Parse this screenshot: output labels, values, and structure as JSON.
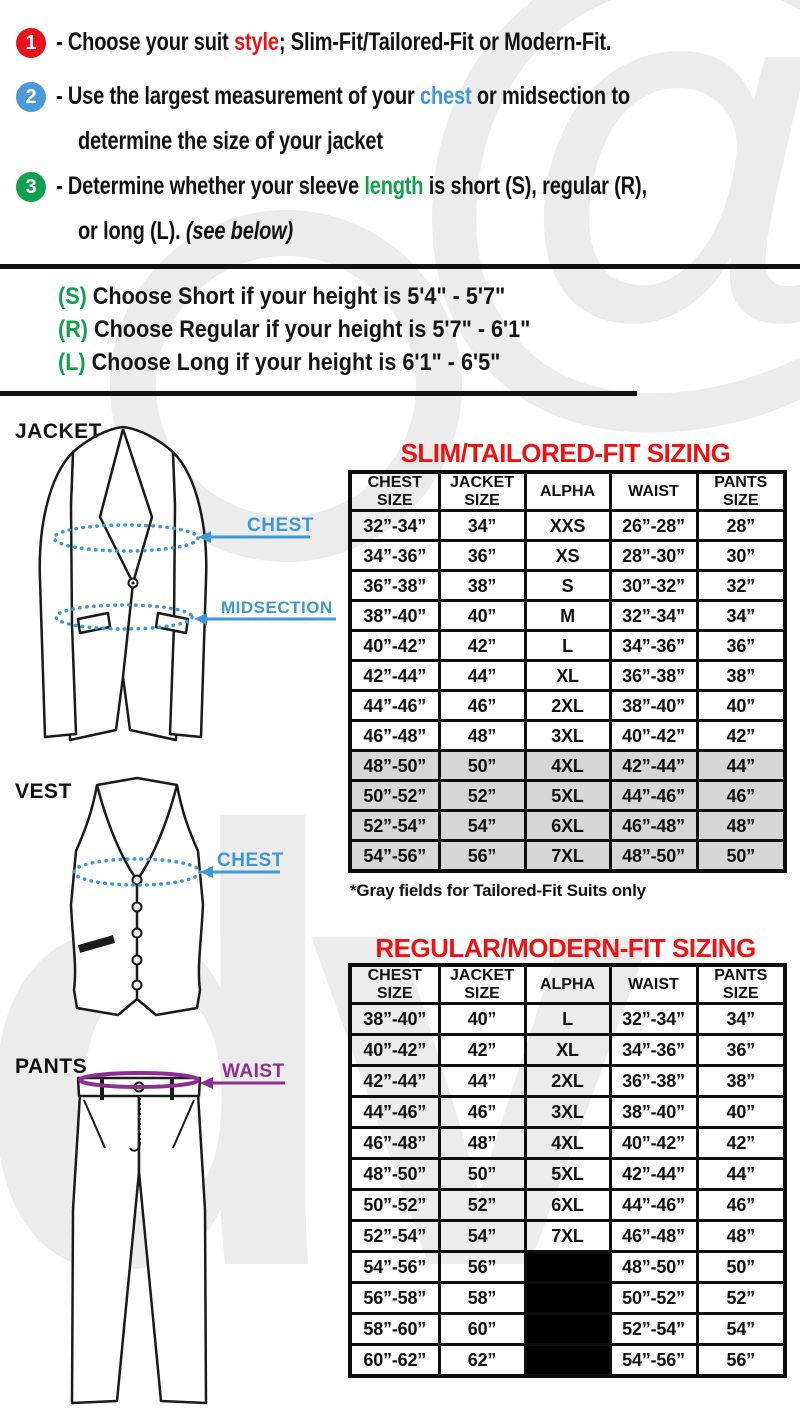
{
  "colors": {
    "accent_red": "#ee1212",
    "accent_blue": "#3f98d6",
    "accent_purple": "#8d2e93",
    "accent_green": "#13a04d",
    "badge_red": "#e8121c",
    "badge_blue": "#4a9ad9",
    "badge_green": "#13a04d",
    "gray_row": "#d6d6d6",
    "black_cell": "#000000"
  },
  "instructions": {
    "badges": [
      {
        "label": "1",
        "color": "red"
      },
      {
        "label": "2",
        "color": "blue"
      },
      {
        "label": "3",
        "color": "green"
      }
    ],
    "line1": [
      {
        "t": "- Choose your suit "
      },
      {
        "t": "style",
        "c": "red"
      },
      {
        "t": "; Slim-Fit/Tailored-Fit or Modern-Fit."
      }
    ],
    "line2a": [
      {
        "t": "- Use the largest measurement of your "
      },
      {
        "t": "chest",
        "c": "blue"
      },
      {
        "t": " or midsection to"
      }
    ],
    "line2b": [
      {
        "t": "determine the size of your jacket"
      }
    ],
    "line3a": [
      {
        "t": "- Determine whether your sleeve "
      },
      {
        "t": "length",
        "c": "green"
      },
      {
        "t": " is short (S), regular (R),"
      }
    ],
    "line3b": [
      {
        "t": "or long (L). "
      },
      {
        "t": "(see below)",
        "i": true
      }
    ]
  },
  "height_guide": {
    "lineS": [
      {
        "t": "(S) ",
        "c": "green"
      },
      {
        "t": "Choose Short if your height is 5'4\" - 5'7\""
      }
    ],
    "lineR": [
      {
        "t": "(R) ",
        "c": "green"
      },
      {
        "t": "Choose Regular if your height is  5'7\" - 6'1\""
      }
    ],
    "lineL": [
      {
        "t": "(L) ",
        "c": "green"
      },
      {
        "t": "Choose Long if your height is  6'1\" - 6'5\""
      }
    ]
  },
  "figures": {
    "jacket_label": "JACKET",
    "vest_label": "VEST",
    "pants_label": "PANTS",
    "jacket_chest_label": "CHEST",
    "jacket_midsection_label": "MIDSECTION",
    "vest_chest_label": "CHEST",
    "pants_waist_label": "WAIST"
  },
  "slim_table": {
    "title": "SLIM/TAILORED-FIT SIZING",
    "headers": [
      {
        "lines": [
          "CHEST",
          "SIZE"
        ],
        "color": "blue"
      },
      {
        "lines": [
          "JACKET",
          "SIZE"
        ]
      },
      {
        "lines": [
          "ALPHA"
        ]
      },
      {
        "lines": [
          "WAIST"
        ],
        "color": "purple"
      },
      {
        "lines": [
          "PANTS",
          "SIZE"
        ]
      }
    ],
    "rows": [
      {
        "chest": "32”-34”",
        "jacket": "34”",
        "alpha": "XXS",
        "waist": "26”-28”",
        "pants": "28”",
        "gray": false
      },
      {
        "chest": "34”-36”",
        "jacket": "36”",
        "alpha": "XS",
        "waist": "28”-30”",
        "pants": "30”",
        "gray": false
      },
      {
        "chest": "36”-38”",
        "jacket": "38”",
        "alpha": "S",
        "waist": "30”-32”",
        "pants": "32”",
        "gray": false
      },
      {
        "chest": "38”-40”",
        "jacket": "40”",
        "alpha": "M",
        "waist": "32”-34”",
        "pants": "34”",
        "gray": false
      },
      {
        "chest": "40”-42”",
        "jacket": "42”",
        "alpha": "L",
        "waist": "34”-36”",
        "pants": "36”",
        "gray": false
      },
      {
        "chest": "42”-44”",
        "jacket": "44”",
        "alpha": "XL",
        "waist": "36”-38”",
        "pants": "38”",
        "gray": false
      },
      {
        "chest": "44”-46”",
        "jacket": "46”",
        "alpha": "2XL",
        "waist": "38”-40”",
        "pants": "40”",
        "gray": false
      },
      {
        "chest": "46”-48”",
        "jacket": "48”",
        "alpha": "3XL",
        "waist": "40”-42”",
        "pants": "42”",
        "gray": false
      },
      {
        "chest": "48”-50”",
        "jacket": "50”",
        "alpha": "4XL",
        "waist": "42”-44”",
        "pants": "44”",
        "gray": true
      },
      {
        "chest": "50”-52”",
        "jacket": "52”",
        "alpha": "5XL",
        "waist": "44”-46”",
        "pants": "46”",
        "gray": true
      },
      {
        "chest": "52”-54”",
        "jacket": "54”",
        "alpha": "6XL",
        "waist": "46”-48”",
        "pants": "48”",
        "gray": true
      },
      {
        "chest": "54”-56”",
        "jacket": "56”",
        "alpha": "7XL",
        "waist": "48”-50”",
        "pants": "50”",
        "gray": true
      }
    ],
    "note": "*Gray fields for Tailored-Fit Suits only"
  },
  "regular_table": {
    "title": "REGULAR/MODERN-FIT SIZING",
    "headers": [
      {
        "lines": [
          "CHEST",
          "SIZE"
        ],
        "color": "blue"
      },
      {
        "lines": [
          "JACKET",
          "SIZE"
        ]
      },
      {
        "lines": [
          "ALPHA"
        ]
      },
      {
        "lines": [
          "WAIST"
        ],
        "color": "purple"
      },
      {
        "lines": [
          "PANTS",
          "SIZE"
        ]
      }
    ],
    "rows": [
      {
        "chest": "38”-40”",
        "jacket": "40”",
        "alpha": "L",
        "waist": "32”-34”",
        "pants": "34”",
        "gray": false
      },
      {
        "chest": "40”-42”",
        "jacket": "42”",
        "alpha": "XL",
        "waist": "34”-36”",
        "pants": "36”",
        "gray": false
      },
      {
        "chest": "42”-44”",
        "jacket": "44”",
        "alpha": "2XL",
        "waist": "36”-38”",
        "pants": "38”",
        "gray": false
      },
      {
        "chest": "44”-46”",
        "jacket": "46”",
        "alpha": "3XL",
        "waist": "38”-40”",
        "pants": "40”",
        "gray": false
      },
      {
        "chest": "46”-48”",
        "jacket": "48”",
        "alpha": "4XL",
        "waist": "40”-42”",
        "pants": "42”",
        "gray": false
      },
      {
        "chest": "48”-50”",
        "jacket": "50”",
        "alpha": "5XL",
        "waist": "42”-44”",
        "pants": "44”",
        "gray": false
      },
      {
        "chest": "50”-52”",
        "jacket": "52”",
        "alpha": "6XL",
        "waist": "44”-46”",
        "pants": "46”",
        "gray": false
      },
      {
        "chest": "52”-54”",
        "jacket": "54”",
        "alpha": "7XL",
        "waist": "46”-48”",
        "pants": "48”",
        "gray": false
      },
      {
        "chest": "54”-56”",
        "jacket": "56”",
        "alpha": null,
        "waist": "48”-50”",
        "pants": "50”",
        "gray": false
      },
      {
        "chest": "56”-58”",
        "jacket": "58”",
        "alpha": null,
        "waist": "50”-52”",
        "pants": "52”",
        "gray": false
      },
      {
        "chest": "58”-60”",
        "jacket": "60”",
        "alpha": null,
        "waist": "52”-54”",
        "pants": "54”",
        "gray": false
      },
      {
        "chest": "60”-62”",
        "jacket": "62”",
        "alpha": null,
        "waist": "54”-56”",
        "pants": "56”",
        "gray": false
      }
    ]
  }
}
